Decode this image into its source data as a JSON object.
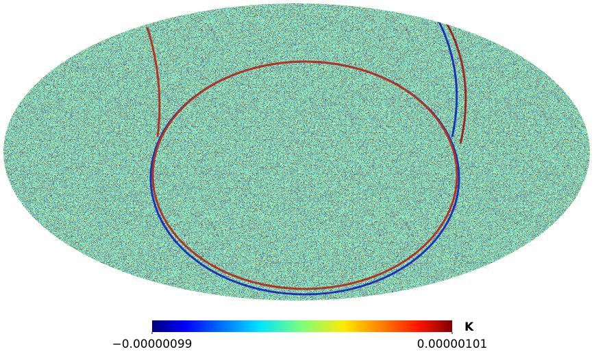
{
  "colorbar": {
    "unit": "K",
    "min": {
      "value": -9.9e-07,
      "label": "−0.00000099"
    },
    "max": {
      "value": 1.01e-06,
      "label": "0.00000101"
    }
  }
}
